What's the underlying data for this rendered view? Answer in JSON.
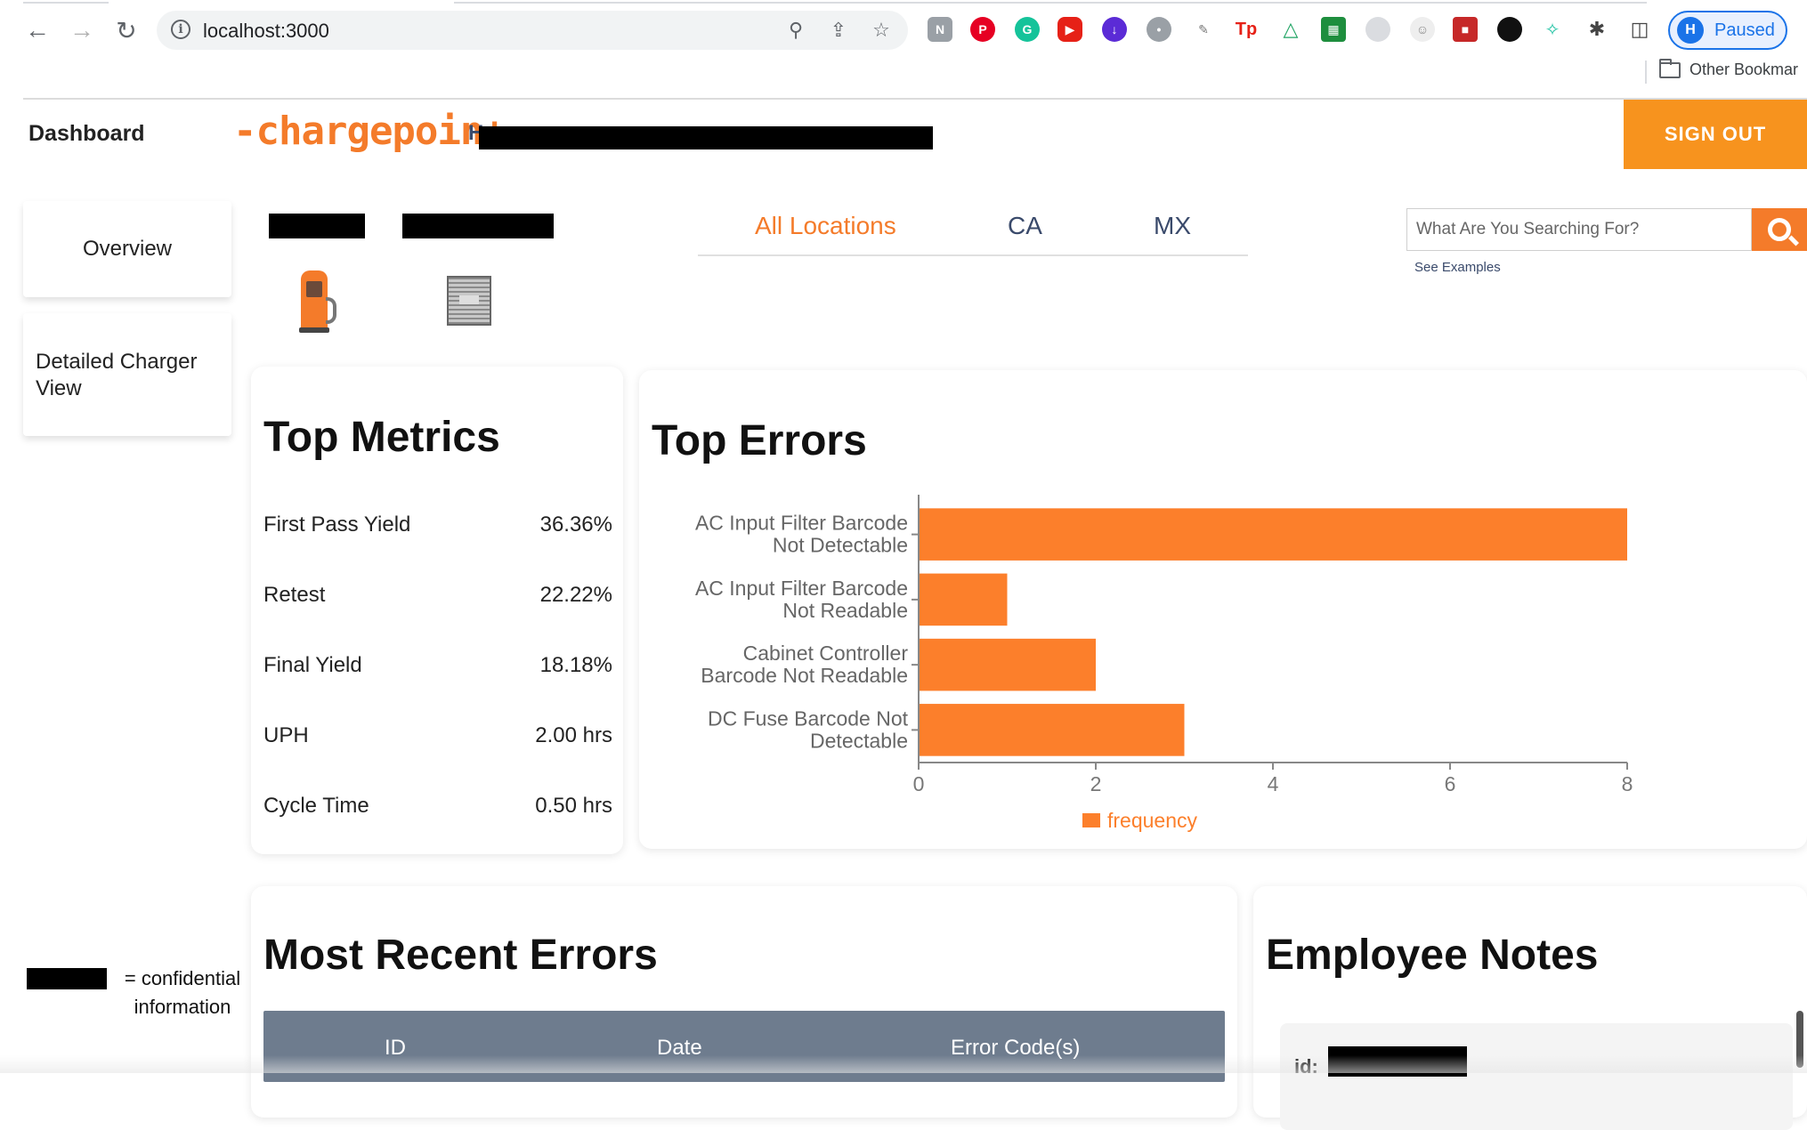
{
  "browser": {
    "url": "localhost:3000",
    "profile_initial": "H",
    "profile_status": "Paused",
    "other_bookmarks": "Other Bookmar"
  },
  "header": {
    "dashboard_label": "Dashboard",
    "logo_text": "-chargepoin+.",
    "greeting_prefix": "H",
    "signout_label": "SIGN OUT",
    "colors": {
      "brand_orange": "#f47b2a",
      "signout_orange": "#f7931e"
    }
  },
  "sidebar": {
    "items": [
      {
        "label": "Overview"
      },
      {
        "label": "Detailed Charger View"
      }
    ]
  },
  "locations": {
    "tabs": [
      {
        "label": "All Locations",
        "active": true
      },
      {
        "label": "CA",
        "active": false
      },
      {
        "label": "MX",
        "active": false
      }
    ]
  },
  "search": {
    "placeholder": "What Are You Searching For?",
    "see_examples": "See Examples"
  },
  "top_metrics": {
    "title": "Top Metrics",
    "rows": [
      {
        "label": "First Pass Yield",
        "value": "36.36%"
      },
      {
        "label": "Retest",
        "value": "22.22%"
      },
      {
        "label": "Final Yield",
        "value": "18.18%"
      },
      {
        "label": "UPH",
        "value": "2.00 hrs"
      },
      {
        "label": "Cycle Time",
        "value": "0.50 hrs"
      }
    ]
  },
  "top_errors": {
    "title": "Top Errors"
  },
  "chart_data": {
    "type": "bar",
    "orientation": "horizontal",
    "title": "Top Errors",
    "categories": [
      [
        "AC Input Filter Barcode",
        "Not Detectable"
      ],
      [
        "AC Input Filter Barcode",
        "Not Readable"
      ],
      [
        "Cabinet Controller",
        "Barcode Not Readable"
      ],
      [
        "DC Fuse Barcode Not",
        "Detectable"
      ]
    ],
    "series": [
      {
        "name": "frequency",
        "values": [
          8,
          1,
          2,
          3
        ],
        "color": "#fc7f2b"
      }
    ],
    "xlim": [
      0,
      8
    ],
    "xticks": [
      0,
      2,
      4,
      6,
      8
    ],
    "grid": false,
    "legend": "bottom-center"
  },
  "recent_errors": {
    "title": "Most Recent Errors",
    "columns": [
      "ID",
      "Date",
      "Error Code(s)"
    ]
  },
  "employee_notes": {
    "title": "Employee Notes",
    "first_note_id_prefix": "id:"
  },
  "legend_note": {
    "text": "= confidential information"
  }
}
